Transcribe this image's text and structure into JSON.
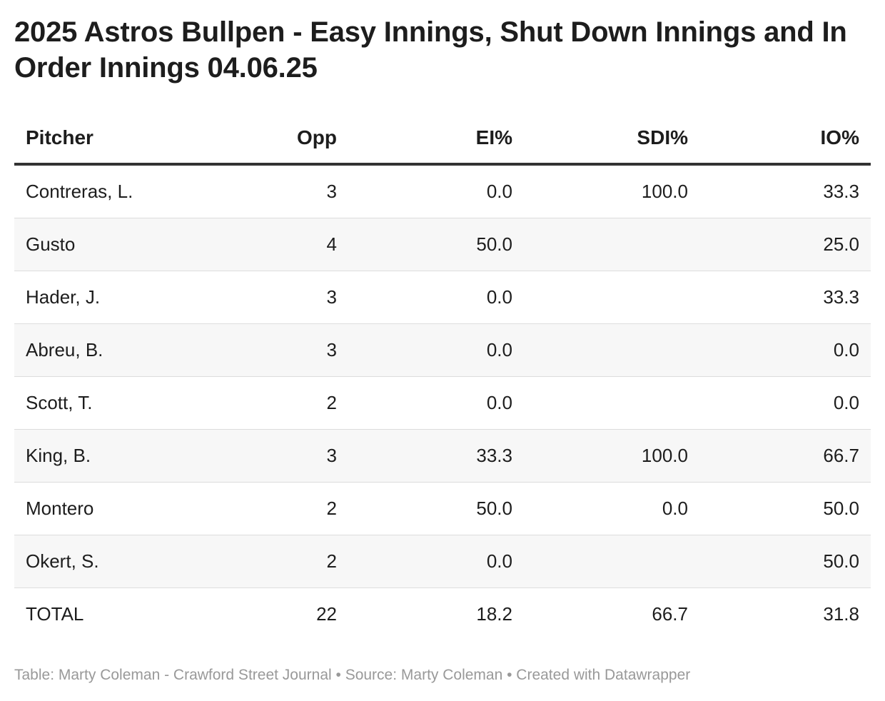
{
  "chart_data": {
    "type": "table",
    "title": "2025 Astros Bullpen - Easy Innings, Shut Down Innings and In Order Innings 04.06.25",
    "columns": [
      "Pitcher",
      "Opp",
      "EI%",
      "SDI%",
      "IO%"
    ],
    "rows": [
      [
        "Contreras, L.",
        "3",
        "0.0",
        "100.0",
        "33.3"
      ],
      [
        "Gusto",
        "4",
        "50.0",
        "",
        "25.0"
      ],
      [
        "Hader, J.",
        "3",
        "0.0",
        "",
        "33.3"
      ],
      [
        "Abreu, B.",
        "3",
        "0.0",
        "",
        "0.0"
      ],
      [
        "Scott, T.",
        "2",
        "0.0",
        "",
        "0.0"
      ],
      [
        "King, B.",
        "3",
        "33.3",
        "100.0",
        "66.7"
      ],
      [
        "Montero",
        "2",
        "50.0",
        "0.0",
        "50.0"
      ],
      [
        "Okert, S.",
        "2",
        "0.0",
        "",
        "50.0"
      ],
      [
        "TOTAL",
        "22",
        "18.2",
        "66.7",
        "31.8"
      ]
    ],
    "footer": "Table: Marty Coleman - Crawford Street Journal • Source: Marty Coleman • Created with Datawrapper"
  }
}
